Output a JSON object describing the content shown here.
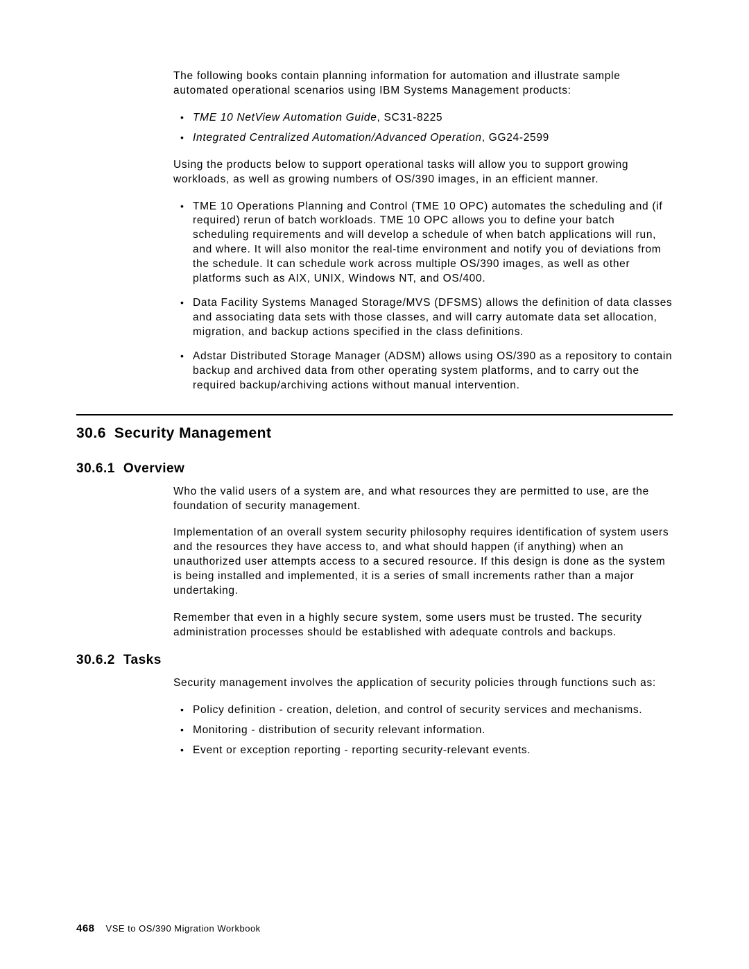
{
  "intro_para": "The following books contain planning information for automation and illustrate sample automated operational scenarios using IBM Systems Management products:",
  "books": [
    {
      "title": "TME 10 NetView Automation Guide",
      "code": ", SC31-8225"
    },
    {
      "title": "Integrated Centralized Automation/Advanced Operation",
      "code": ", GG24-2599"
    }
  ],
  "middle_para": "Using the products below to support operational tasks will allow you to support growing workloads, as well as growing numbers of OS/390 images, in an efficient manner.",
  "products": [
    "TME 10 Operations Planning and Control (TME 10 OPC) automates the scheduling and (if required) rerun of batch workloads. TME 10 OPC allows you to define your batch scheduling requirements and will develop a schedule of when batch applications will run, and where. It will also monitor the real-time environment and notify you of deviations from the schedule. It can schedule work across multiple OS/390 images, as well as other platforms such as AIX, UNIX, Windows NT, and OS/400.",
    "Data Facility Systems Managed Storage/MVS (DFSMS) allows the definition of data classes and associating data sets with those classes, and will carry automate data set allocation, migration, and backup actions specified in the class definitions.",
    "Adstar Distributed Storage Manager (ADSM) allows using OS/390 as a repository to contain backup and archived data from other operating system platforms, and to carry out the required backup/archiving actions without manual intervention."
  ],
  "section": {
    "number": "30.6",
    "title": "Security Management"
  },
  "subsection1": {
    "number": "30.6.1",
    "title": "Overview",
    "paras": [
      "Who the valid users of a system are, and what resources they are permitted to use, are the foundation of security management.",
      "Implementation of an overall system security philosophy requires identification of system users and the resources they have access to, and what should happen (if anything) when an unauthorized user attempts access to a secured resource. If this design is done as the system is being installed and implemented, it is a series of small increments rather than a major undertaking.",
      "Remember that even in a highly secure system, some users must be trusted. The security administration processes should be established with adequate controls and backups."
    ]
  },
  "subsection2": {
    "number": "30.6.2",
    "title": "Tasks",
    "intro": "Security management involves the application of security policies through functions such as:",
    "tasks": [
      "Policy definition - creation, deletion, and control of security services and mechanisms.",
      "Monitoring - distribution of security relevant information.",
      "Event or exception reporting - reporting security-relevant events."
    ]
  },
  "footer": {
    "page": "468",
    "book": "VSE to OS/390 Migration Workbook"
  }
}
